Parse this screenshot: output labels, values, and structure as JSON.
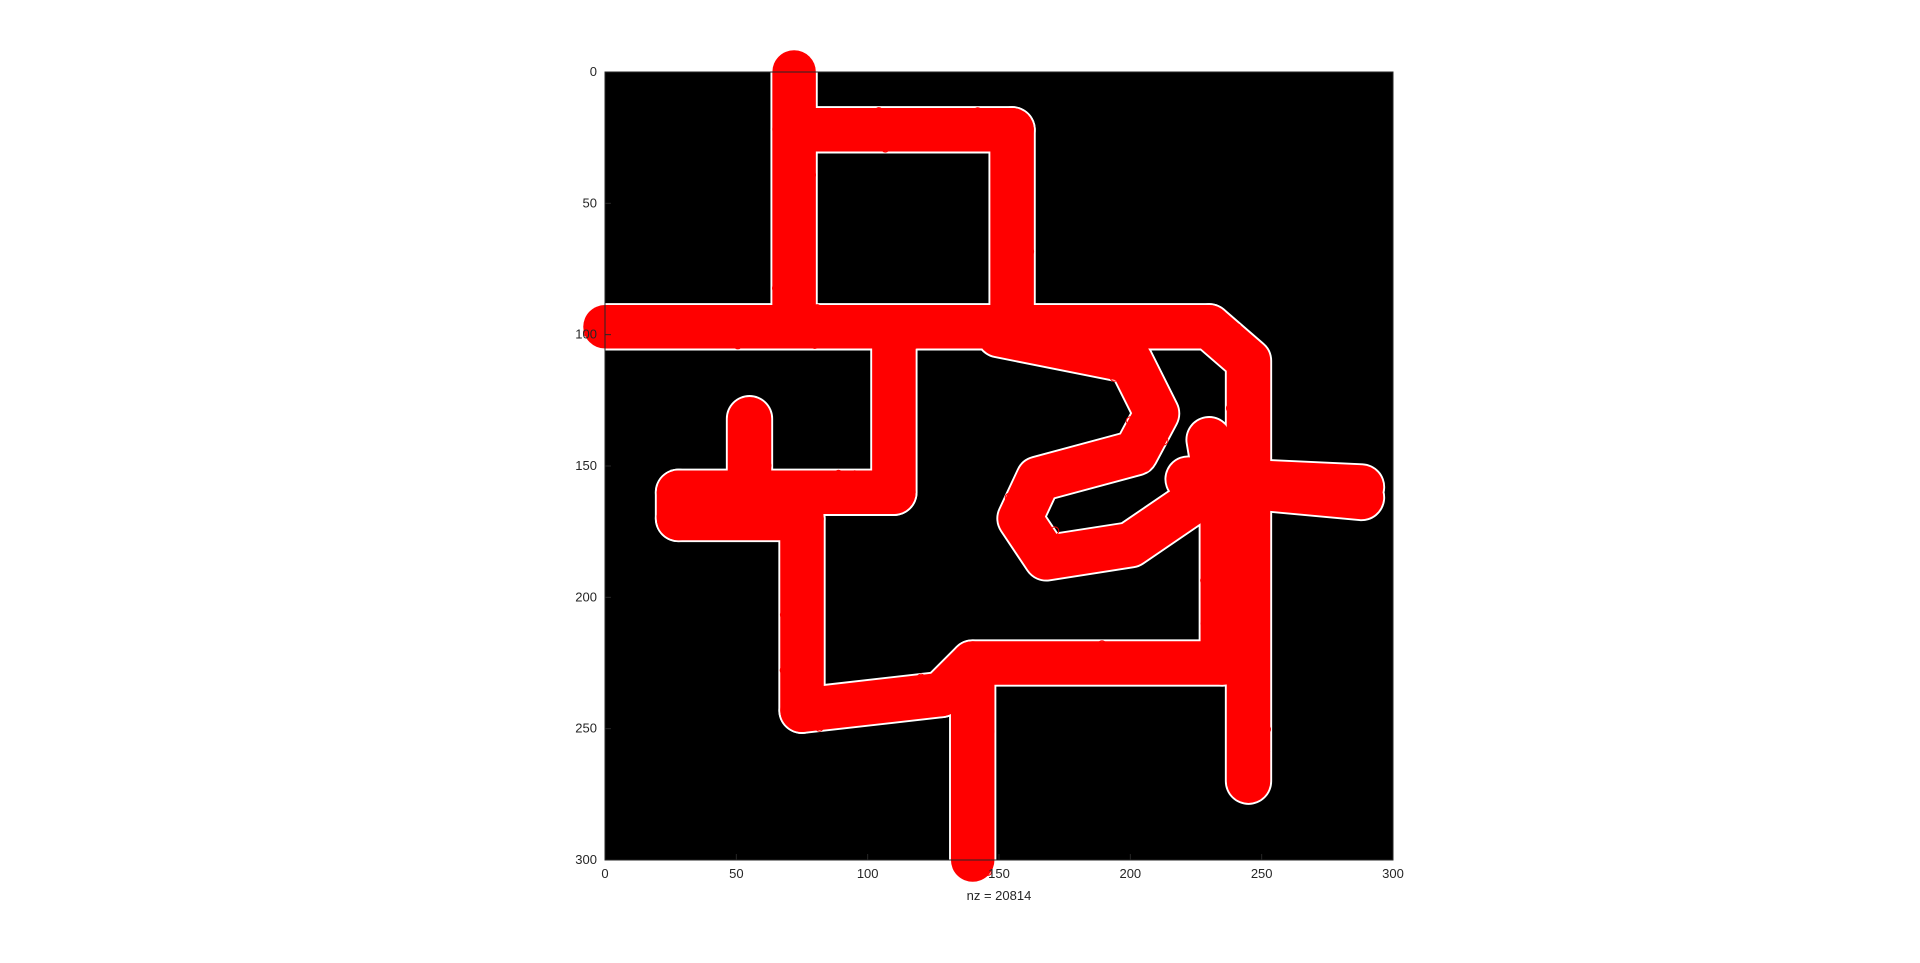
{
  "chart_data": {
    "type": "scatter",
    "title": "",
    "xlabel": "nz = 20814",
    "ylabel": "",
    "xlim": [
      0,
      300
    ],
    "ylim": [
      0,
      300
    ],
    "y_direction": "reverse",
    "grid": false,
    "legend": "none",
    "x_ticks": [
      "0",
      "50",
      "100",
      "150",
      "200",
      "250",
      "300"
    ],
    "y_ticks": [
      "0",
      "50",
      "100",
      "150",
      "200",
      "250",
      "300"
    ],
    "colors": {
      "background": "#000000",
      "free_space": "#ffffff",
      "markers": "#ff0000"
    },
    "series": [
      {
        "marker": "o",
        "corridors": [
          [
            [
              72,
              0
            ],
            [
              72,
              97
            ]
          ],
          [
            [
              72,
              22
            ],
            [
              155,
              22
            ]
          ],
          [
            [
              155,
              22
            ],
            [
              155,
              97
            ]
          ],
          [
            [
              0,
              97
            ],
            [
              230,
              97
            ]
          ],
          [
            [
              230,
              97
            ],
            [
              245,
              110
            ],
            [
              245,
              270
            ]
          ],
          [
            [
              110,
              100
            ],
            [
              110,
              160
            ]
          ],
          [
            [
              110,
              160
            ],
            [
              28,
              160
            ]
          ],
          [
            [
              28,
              160
            ],
            [
              28,
              170
            ]
          ],
          [
            [
              28,
              170
            ],
            [
              75,
              170
            ]
          ],
          [
            [
              55,
              132
            ],
            [
              55,
              160
            ]
          ],
          [
            [
              75,
              170
            ],
            [
              75,
              243
            ]
          ],
          [
            [
              75,
              243
            ],
            [
              128,
              237
            ]
          ],
          [
            [
              128,
              237
            ],
            [
              140,
              225
            ],
            [
              235,
              225
            ]
          ],
          [
            [
              140,
              225
            ],
            [
              140,
              300
            ]
          ],
          [
            [
              235,
              225
            ],
            [
              235,
              170
            ]
          ],
          [
            [
              235,
              170
            ],
            [
              230,
              140
            ]
          ],
          [
            [
              150,
              100
            ],
            [
              200,
              110
            ],
            [
              210,
              130
            ],
            [
              202,
              145
            ],
            [
              165,
              155
            ],
            [
              158,
              170
            ],
            [
              168,
              185
            ],
            [
              200,
              180
            ],
            [
              222,
              165
            ]
          ],
          [
            [
              222,
              155
            ],
            [
              288,
              158
            ]
          ],
          [
            [
              245,
              158
            ],
            [
              288,
              162
            ]
          ]
        ]
      }
    ]
  }
}
